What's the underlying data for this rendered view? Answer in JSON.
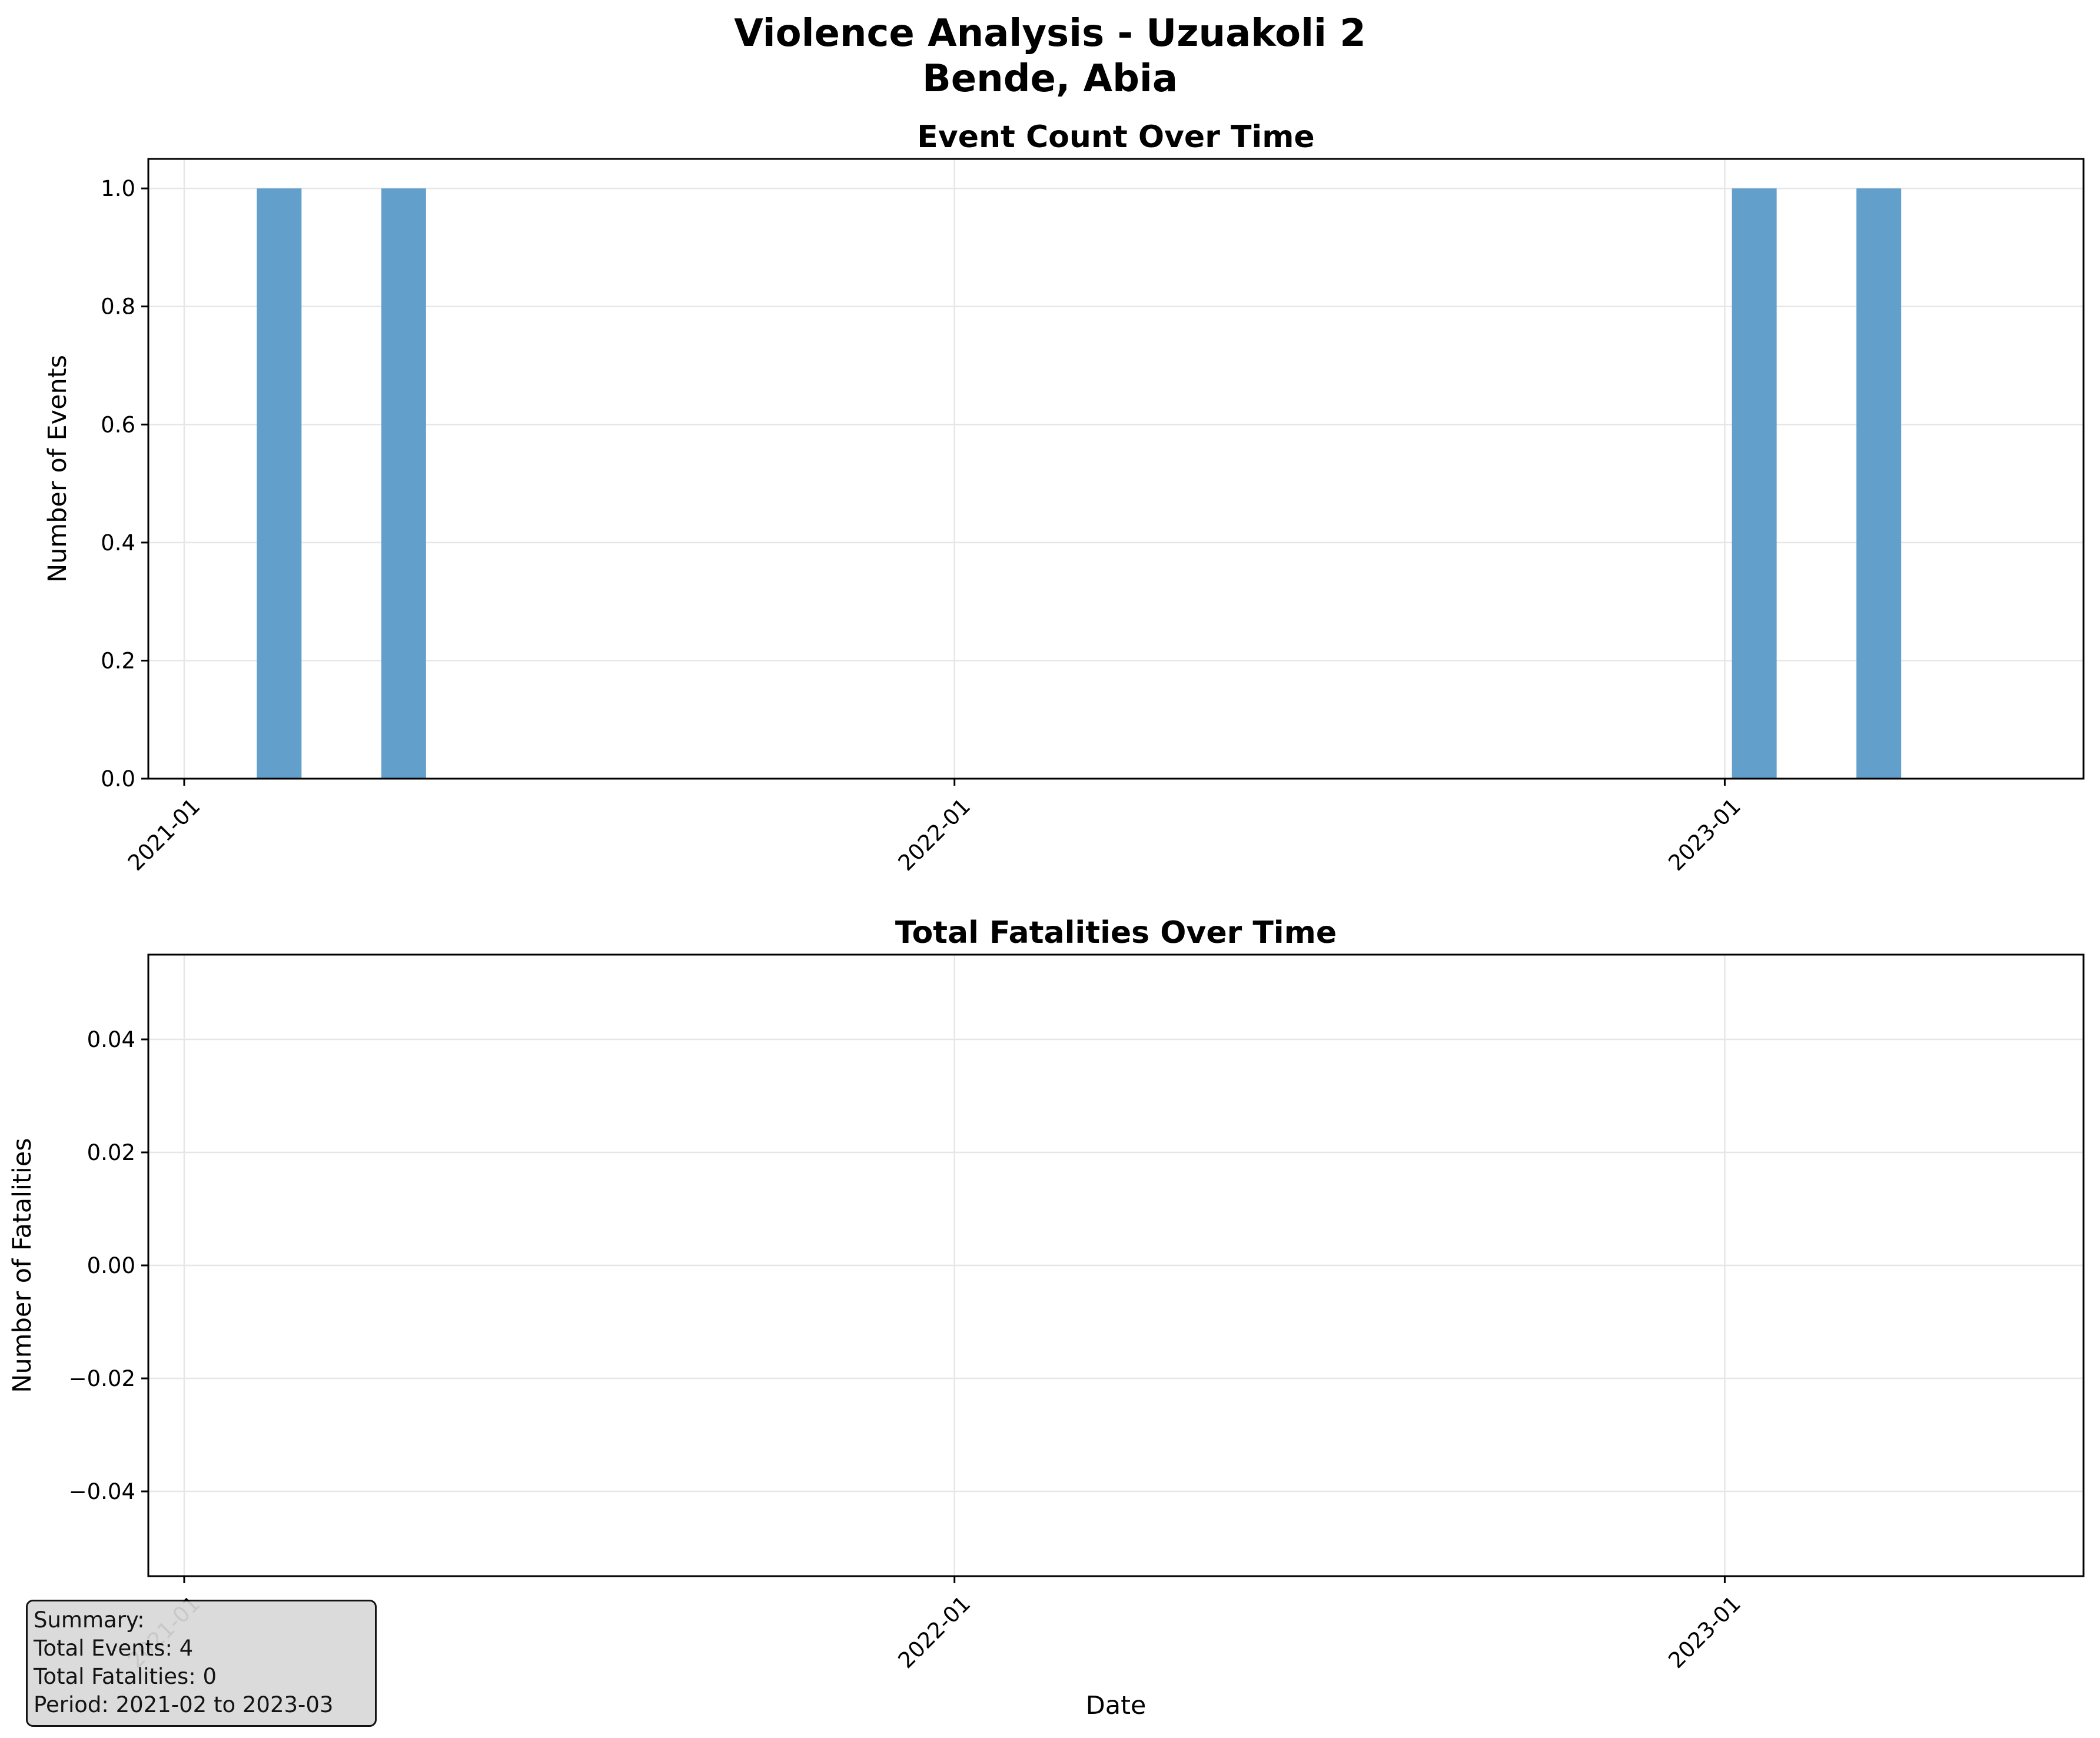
{
  "figure": {
    "title_line1": "Violence Analysis - Uzuakoli 2",
    "title_line2": "Bende, Abia"
  },
  "summary": {
    "heading": "Summary:",
    "total_events": "Total Events: 4",
    "total_fatalities": "Total Fatalities: 0",
    "period": "Period: 2021-02 to 2023-03"
  },
  "colors": {
    "bar": "#62a0cb",
    "grid": "#e6e6e6",
    "axis": "#000000"
  },
  "chart_data": [
    {
      "type": "bar",
      "title": "Event Count Over Time",
      "xlabel": "",
      "ylabel": "Number of Events",
      "x": [
        "2021-02",
        "2021-04",
        "2023-01",
        "2023-03"
      ],
      "values": [
        1,
        1,
        1,
        1
      ],
      "xlim": [
        "2020-12-15",
        "2023-06-20"
      ],
      "ylim": [
        0,
        1.05
      ],
      "xticks": [
        "2021-01",
        "2022-01",
        "2023-01"
      ],
      "yticks": [
        "0.0",
        "0.2",
        "0.4",
        "0.6",
        "0.8",
        "1.0"
      ],
      "grid": true
    },
    {
      "type": "line",
      "title": "Total Fatalities Over Time",
      "xlabel": "Date",
      "ylabel": "Number of Fatalities",
      "x": [],
      "values": [],
      "xlim": [
        "2020-12-15",
        "2023-06-20"
      ],
      "ylim": [
        -0.055,
        0.055
      ],
      "xticks": [
        "2021-01",
        "2022-01",
        "2023-01"
      ],
      "yticks": [
        "−0.04",
        "−0.02",
        "0.00",
        "0.02",
        "0.04"
      ],
      "grid": true
    }
  ]
}
